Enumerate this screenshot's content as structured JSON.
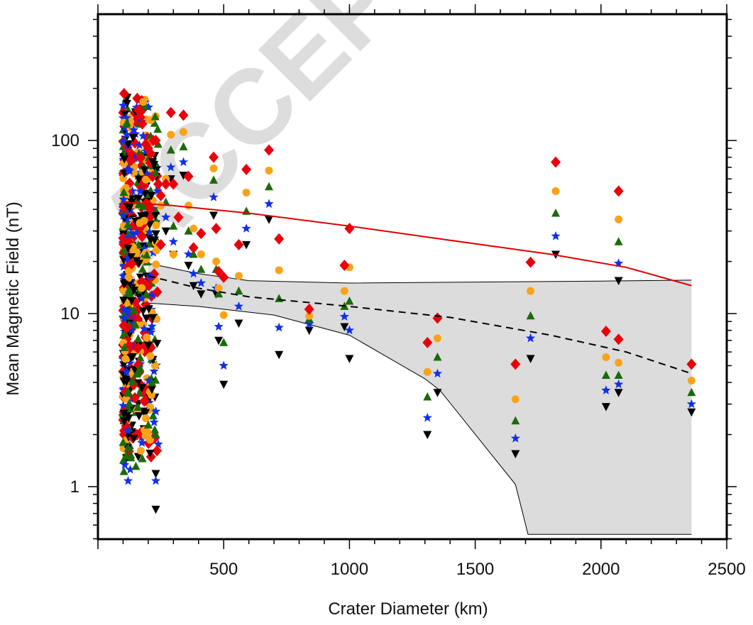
{
  "chart_data": {
    "type": "scatter",
    "title": "",
    "xlabel": "Crater Diameter (km)",
    "ylabel": "Mean Magnetic Field (nT)",
    "x_scale": "linear",
    "y_scale": "log",
    "xlim": [
      0,
      2500
    ],
    "ylim": [
      0.5,
      500
    ],
    "x_ticks": [
      500,
      1000,
      1500,
      2000,
      2500
    ],
    "x_tick_labels": [
      "500",
      "1000",
      "1500",
      "2000",
      "2500"
    ],
    "y_ticks": [
      1,
      10,
      100
    ],
    "y_tick_labels": [
      "1",
      "10",
      "100"
    ],
    "grid": false,
    "legend": "none",
    "watermark": "ACCEPTED",
    "colors": {
      "diamond": "#e8000b",
      "circle": "#f9a31b",
      "triangle": "#1a6a0a",
      "star": "#1030e8",
      "inverted_triangle": "#000000",
      "fit_red": "#e00000",
      "band_fill": "#dcdcdc"
    },
    "series": [
      {
        "marker": "diamond",
        "color": "#e8000b",
        "x": [
          290,
          340,
          460,
          590,
          680,
          720,
          840,
          980,
          1000,
          1310,
          1350,
          1660,
          1720,
          1820,
          2020,
          2070,
          2070,
          2360,
          250,
          270,
          300,
          320,
          360,
          380,
          410,
          470,
          480,
          500,
          560,
          200,
          210,
          220,
          230,
          240,
          250,
          190
        ],
        "y": [
          145,
          140,
          80,
          68,
          88,
          27,
          10.6,
          19,
          31,
          6.8,
          9.4,
          5.1,
          19.8,
          75,
          7.9,
          51,
          7.1,
          5.1,
          25,
          56,
          56,
          36,
          62,
          24,
          29,
          31,
          17.5,
          16.2,
          25,
          90,
          84,
          100,
          100,
          56,
          48,
          95
        ]
      },
      {
        "marker": "circle",
        "color": "#f9a31b",
        "x": [
          290,
          340,
          460,
          590,
          680,
          720,
          840,
          980,
          1000,
          1310,
          1350,
          1660,
          1720,
          1820,
          2020,
          2070,
          2070,
          2360,
          250,
          270,
          300,
          360,
          380,
          410,
          470,
          480,
          500,
          560
        ],
        "y": [
          108,
          112,
          69,
          50,
          67,
          17.8,
          9.7,
          13.5,
          18.5,
          4.6,
          7.2,
          3.2,
          13.5,
          51,
          5.6,
          35,
          5.2,
          4.1,
          42,
          60,
          22,
          42,
          31,
          22,
          20,
          14,
          9.8,
          16.5
        ]
      },
      {
        "marker": "triangle",
        "color": "#1a6a0a",
        "x": [
          290,
          340,
          460,
          590,
          680,
          720,
          840,
          980,
          1000,
          1310,
          1350,
          1660,
          1720,
          1820,
          2020,
          2070,
          2070,
          2360,
          230,
          270,
          300,
          360,
          380,
          410,
          470,
          480,
          500,
          560
        ],
        "y": [
          88,
          92,
          59,
          39,
          54,
          12.2,
          9.3,
          11,
          11.8,
          3.3,
          5.6,
          2.4,
          9.7,
          38,
          4.4,
          26,
          4.4,
          3.5,
          2,
          44,
          32,
          30,
          22,
          18,
          18,
          13,
          6.8,
          13.5
        ]
      },
      {
        "marker": "star",
        "color": "#1030e8",
        "x": [
          290,
          340,
          460,
          590,
          680,
          720,
          840,
          980,
          1000,
          1310,
          1350,
          1660,
          1720,
          1820,
          2020,
          2070,
          2070,
          2360,
          230,
          270,
          300,
          360,
          380,
          410,
          470,
          480,
          500,
          560
        ],
        "y": [
          70,
          75,
          47,
          31,
          43,
          8.3,
          8.7,
          9.6,
          8,
          2.5,
          4.5,
          1.9,
          7.2,
          28,
          3.6,
          19.5,
          3.9,
          3,
          1.08,
          36,
          26,
          22,
          17,
          15,
          14,
          8.4,
          5,
          11
        ]
      },
      {
        "marker": "inverted_triangle",
        "color": "#000000",
        "x": [
          290,
          340,
          460,
          590,
          680,
          720,
          840,
          980,
          1000,
          1310,
          1350,
          1660,
          1720,
          1820,
          2020,
          2070,
          2070,
          2360,
          230,
          270,
          300,
          360,
          380,
          410,
          470,
          480,
          500,
          560
        ],
        "y": [
          60,
          63,
          37,
          25,
          35,
          5.8,
          8,
          8.4,
          5.5,
          2,
          3.5,
          1.55,
          5.5,
          22,
          2.9,
          15.5,
          3.5,
          2.7,
          0.74,
          30,
          22,
          19,
          14.5,
          13,
          13,
          7,
          3.9,
          8.8
        ]
      }
    ],
    "dense_cluster": {
      "x_range": [
        100,
        240
      ],
      "y_range": [
        0.65,
        350
      ],
      "note_markers": [
        "diamond",
        "circle",
        "triangle",
        "star",
        "inverted_triangle"
      ]
    },
    "lines": [
      {
        "style": "solid",
        "color": "#e00000",
        "x": [
          100,
          300,
          600,
          1000,
          1400,
          1800,
          2100,
          2360
        ],
        "y": [
          44,
          42,
          38,
          32,
          26.5,
          22,
          18.5,
          14.5
        ]
      },
      {
        "style": "dashed",
        "color": "#000000",
        "x": [
          200,
          400,
          600,
          1000,
          1400,
          1800,
          2100,
          2360
        ],
        "y": [
          16.5,
          14,
          12.5,
          11,
          9.5,
          7.5,
          6,
          4.5
        ]
      }
    ],
    "band": {
      "color": "#dcdcdc",
      "upper": {
        "x": [
          200,
          400,
          600,
          1000,
          1500,
          2000,
          2360
        ],
        "y": [
          19.5,
          17,
          15.5,
          15,
          15.2,
          15.4,
          15.6
        ]
      },
      "lower": {
        "x": [
          200,
          400,
          700,
          1000,
          1300,
          1360,
          1660,
          1710,
          2360
        ],
        "y": [
          11.5,
          11,
          9.8,
          7.5,
          4.2,
          3.6,
          1.03,
          0.53,
          0.53
        ]
      }
    }
  }
}
